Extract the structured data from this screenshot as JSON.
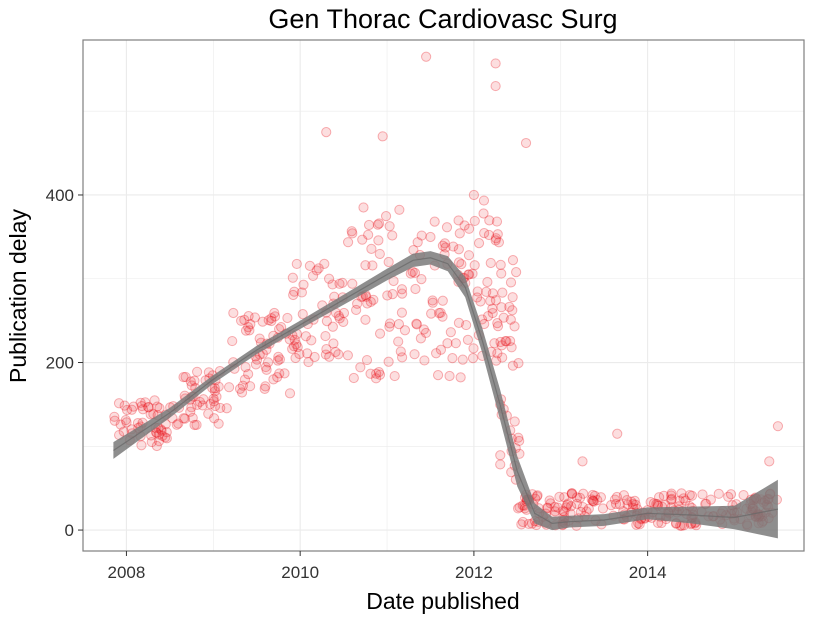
{
  "chart_data": {
    "type": "scatter",
    "title": "Gen Thorac Cardiovasc Surg",
    "xlabel": "Date published",
    "ylabel": "Publication delay",
    "xlim": [
      2007.5,
      2015.8
    ],
    "ylim": [
      -25,
      585
    ],
    "x_ticks": [
      2008,
      2010,
      2012,
      2014
    ],
    "y_ticks": [
      0,
      200,
      400
    ],
    "x_tick_labels": [
      "2008",
      "2010",
      "2012",
      "2014"
    ],
    "y_tick_labels": [
      "0",
      "200",
      "400"
    ],
    "grid": true,
    "legend": "none",
    "colors": {
      "points": "#e8141b",
      "smooth_band": "#7a7a7a",
      "panel_border": "#7f7f7f",
      "grid": "#ebebeb"
    },
    "point_clusters": [
      {
        "x_range": [
          2007.85,
          2008.6
        ],
        "center": [
          100,
          155
        ],
        "n": 55
      },
      {
        "x_range": [
          2008.6,
          2009.2
        ],
        "center": [
          125,
          190
        ],
        "n": 45
      },
      {
        "x_range": [
          2009.2,
          2009.9
        ],
        "center": [
          160,
          260
        ],
        "n": 55
      },
      {
        "x_range": [
          2009.9,
          2010.5
        ],
        "center": [
          200,
          320
        ],
        "n": 50
      },
      {
        "x_range": [
          2010.5,
          2011.2
        ],
        "center": [
          180,
          390
        ],
        "n": 55
      },
      {
        "x_range": [
          2011.2,
          2011.9
        ],
        "center": [
          180,
          370
        ],
        "n": 55
      },
      {
        "x_range": [
          2011.9,
          2012.3
        ],
        "center": [
          200,
          400
        ],
        "n": 45
      },
      {
        "x_range": [
          2012.3,
          2012.55
        ],
        "center": [
          60,
          340
        ],
        "n": 40
      },
      {
        "x_range": [
          2012.5,
          2015.5
        ],
        "center": [
          5,
          45
        ],
        "n": 230
      }
    ],
    "outliers": [
      {
        "x": 2011.45,
        "y": 565
      },
      {
        "x": 2012.25,
        "y": 557
      },
      {
        "x": 2012.25,
        "y": 530
      },
      {
        "x": 2012.6,
        "y": 462
      },
      {
        "x": 2010.3,
        "y": 475
      },
      {
        "x": 2010.95,
        "y": 470
      },
      {
        "x": 2012.0,
        "y": 400
      },
      {
        "x": 2013.25,
        "y": 82
      },
      {
        "x": 2013.65,
        "y": 115
      },
      {
        "x": 2015.4,
        "y": 82
      },
      {
        "x": 2015.5,
        "y": 124
      }
    ],
    "smooth": {
      "x": [
        2007.85,
        2008.5,
        2009.0,
        2009.5,
        2010.0,
        2010.5,
        2011.0,
        2011.3,
        2011.5,
        2011.7,
        2011.9,
        2012.1,
        2012.3,
        2012.5,
        2012.7,
        2012.9,
        2013.1,
        2013.5,
        2014.0,
        2014.5,
        2015.0,
        2015.5
      ],
      "y": [
        95,
        140,
        180,
        215,
        245,
        275,
        305,
        322,
        325,
        318,
        290,
        225,
        150,
        70,
        20,
        8,
        10,
        12,
        20,
        18,
        15,
        25
      ],
      "se": [
        10,
        6,
        5,
        5,
        5,
        6,
        7,
        8,
        8,
        9,
        12,
        15,
        18,
        18,
        12,
        8,
        7,
        7,
        7,
        10,
        14,
        35
      ]
    }
  }
}
